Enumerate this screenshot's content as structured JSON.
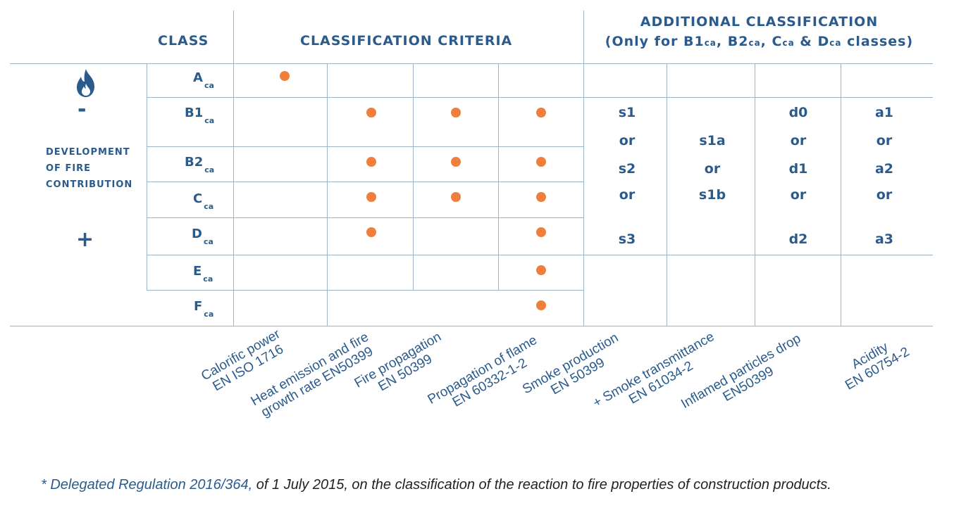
{
  "headers": {
    "class": "CLASS",
    "criteria": "CLASSIFICATION CRITERIA",
    "additional_line1": "ADDITIONAL CLASSIFICATION",
    "additional_line2_pre": "(Only for B1",
    "ca": "ca",
    "sep1": ", B2",
    "sep2": ", C",
    "sep3": " & D",
    "additional_line2_post": " classes)"
  },
  "side": {
    "minus": "-",
    "plus": "+",
    "label_line1": "DEVELOPMENT",
    "label_line2": "OF FIRE",
    "label_line3": "CONTRIBUTION"
  },
  "classes": [
    {
      "main": "A",
      "sub": "ca"
    },
    {
      "main": "B1",
      "sub": "ca"
    },
    {
      "main": "B2",
      "sub": "ca"
    },
    {
      "main": "C",
      "sub": "ca"
    },
    {
      "main": "D",
      "sub": "ca"
    },
    {
      "main": "E",
      "sub": "ca"
    },
    {
      "main": "F",
      "sub": "ca"
    }
  ],
  "smoke": [
    "s1",
    "or",
    "s2",
    "or",
    "s3"
  ],
  "smoke_transmittance": [
    "s1a",
    "or",
    "s1b"
  ],
  "droplets": [
    "d0",
    "or",
    "d1",
    "or",
    "d2"
  ],
  "acidity": [
    "a1",
    "or",
    "a2",
    "or",
    "a3"
  ],
  "columns": [
    {
      "line1": "Calorific power",
      "line2": "EN ISO 1716"
    },
    {
      "line1": "Heat emission and fire",
      "line2": "growth rate EN50399"
    },
    {
      "line1": "Fire propagation",
      "line2": "EN 50399"
    },
    {
      "line1": "Propagation of flame",
      "line2": "EN 60332-1-2"
    },
    {
      "line1": "Smoke production",
      "line2": "EN 50399"
    },
    {
      "line1": "+ Smoke transmittance",
      "line2": "EN 61034-2"
    },
    {
      "line1": "Inflamed particles drop",
      "line2": "EN50399"
    },
    {
      "line1": "Acidity",
      "line2": "EN 60754-2"
    }
  ],
  "footnote": {
    "link": "* Delegated Regulation 2016/364,",
    "text": " of 1 July 2015, on the classification of the reaction to fire properties of construction products."
  },
  "colors": {
    "accent": "#ef7f3a",
    "text": "#2a5b8c",
    "grid": "#9fb3c8"
  }
}
